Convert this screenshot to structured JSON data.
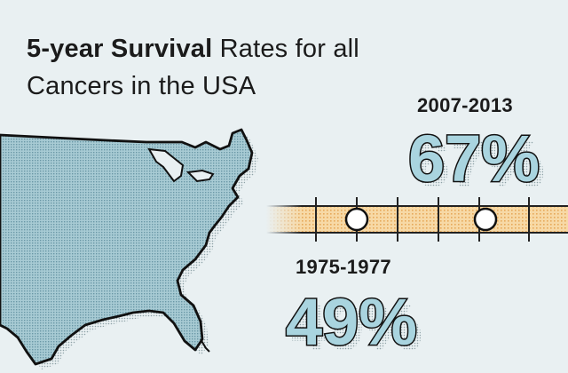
{
  "infographic": {
    "title_bold": "5-year Survival",
    "title_rest_line1": " Rates for all",
    "title_line2": "Cancers in the USA"
  },
  "stats": {
    "recent": {
      "period": "2007-2013",
      "rate": "67%"
    },
    "early": {
      "period": "1975-1977",
      "rate": "49%"
    }
  },
  "colors": {
    "background": "#e9f0f2",
    "map_fill": "#8fbcc8",
    "map_outline": "#111111",
    "timeline_fill": "#f4c98d",
    "text": "#1b1b1b",
    "stat_fill": "#a9d4df"
  }
}
